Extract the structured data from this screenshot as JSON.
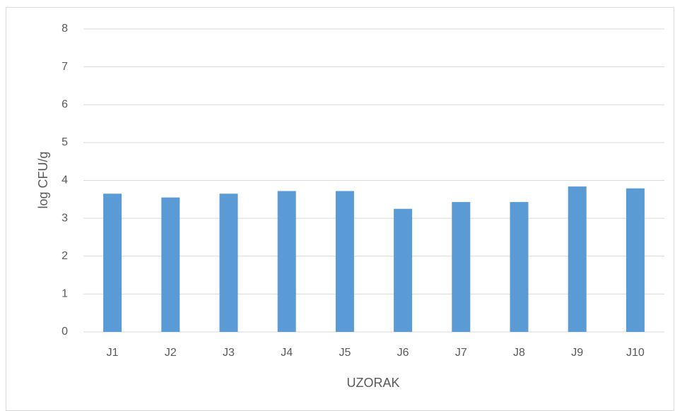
{
  "chart_data": {
    "type": "bar",
    "y_label": "log CFU/g",
    "x_label": "UZORAK",
    "categories": [
      "J1",
      "J2",
      "J3",
      "J4",
      "J5",
      "J6",
      "J7",
      "J8",
      "J9",
      "J10"
    ],
    "values": [
      3.65,
      3.55,
      3.65,
      3.72,
      3.72,
      3.25,
      3.43,
      3.43,
      3.84,
      3.79
    ],
    "color": "#5b9bd5",
    "ylim": [
      0,
      8
    ],
    "yticks": [
      0,
      1,
      2,
      3,
      4,
      5,
      6,
      7,
      8
    ],
    "grid": true
  }
}
